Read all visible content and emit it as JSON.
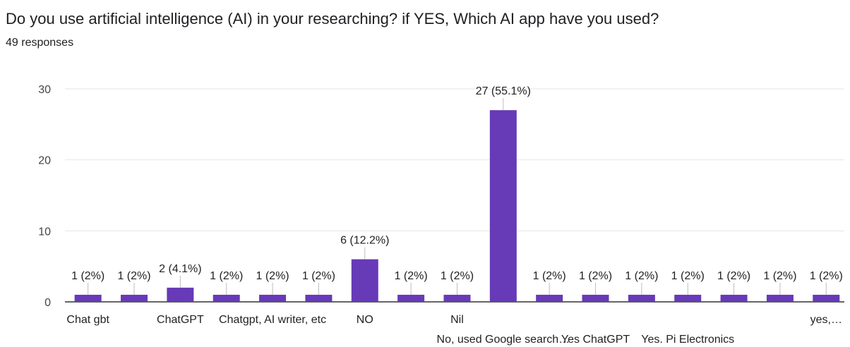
{
  "header": {
    "question": "Do you use artificial intelligence (AI) in your researching?  if YES,  Which AI app have you used?",
    "responses": "49 responses"
  },
  "colors": {
    "bar": "#673ab7",
    "grid": "#e6e6e6",
    "axis": "#333333",
    "leader": "#bdbdbd"
  },
  "chart_data": {
    "type": "bar",
    "ylim": [
      0,
      30
    ],
    "yticks": [
      0,
      10,
      20,
      30
    ],
    "grid": true,
    "categories": [
      "Chat gbt",
      "",
      "ChatGPT",
      "",
      "Chatgpt, AI writer, etc",
      "",
      "NO",
      "",
      "Nil",
      "No, used Google search…",
      "",
      "Yes ChatGPT",
      "",
      "Yes. Pi Electronics",
      "",
      "",
      "yes,…"
    ],
    "values": [
      1,
      1,
      2,
      1,
      1,
      1,
      6,
      1,
      1,
      27,
      1,
      1,
      1,
      1,
      1,
      1,
      1
    ],
    "data_labels": [
      "1 (2%)",
      "1 (2%)",
      "2 (4.1%)",
      "1 (2%)",
      "1 (2%)",
      "1 (2%)",
      "6 (12.2%)",
      "1 (2%)",
      "1 (2%)",
      "27 (55.1%)",
      "1 (2%)",
      "1 (2%)",
      "1 (2%)",
      "1 (2%)",
      "1 (2%)",
      "1 (2%)",
      "1 (2%)"
    ]
  }
}
